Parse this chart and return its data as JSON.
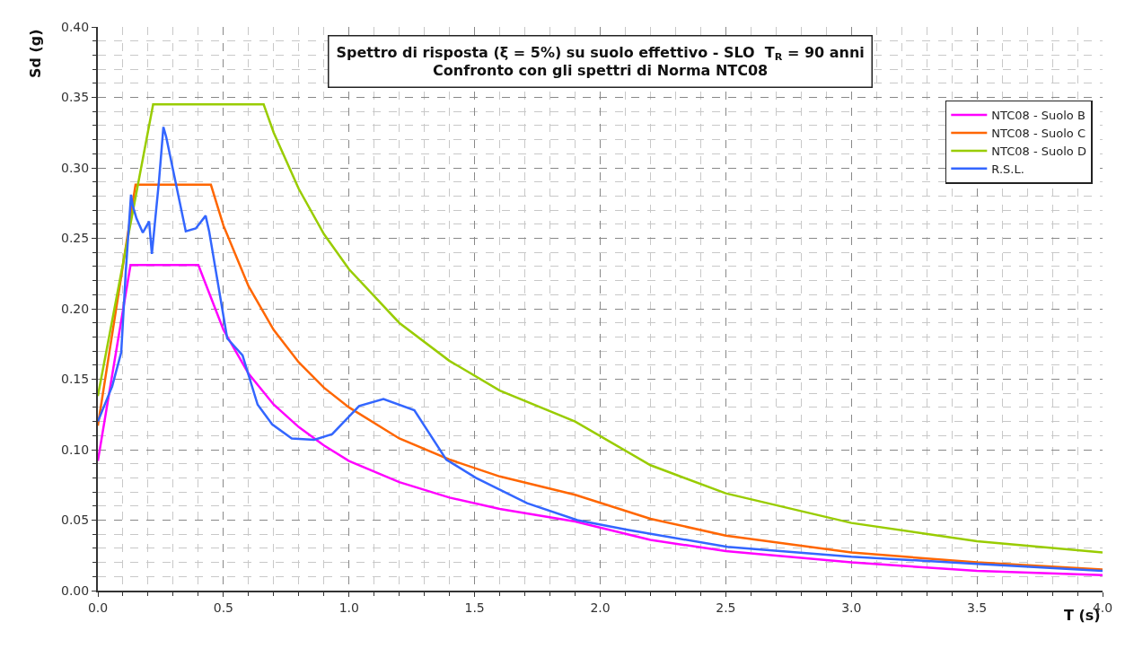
{
  "chart_data": {
    "type": "line",
    "title": "Spettro di risposta (ξ = 5%) su suolo effettivo - SLO  T$_{R}$ = 90 anni\nConfronto con gli spettri di Norma NTC08",
    "xlabel": "T (s)",
    "ylabel": "Sd (g)",
    "xlim": [
      0,
      4
    ],
    "ylim": [
      0,
      0.4
    ],
    "xticks": [
      {
        "value": 0,
        "label": "0.0"
      },
      {
        "value": 0.5,
        "label": "0.5"
      },
      {
        "value": 1,
        "label": "1.0"
      },
      {
        "value": 1.5,
        "label": "1.5"
      },
      {
        "value": 2,
        "label": "2.0"
      },
      {
        "value": 2.5,
        "label": "2.5"
      },
      {
        "value": 3,
        "label": "3.0"
      },
      {
        "value": 3.5,
        "label": "3.5"
      },
      {
        "value": 4,
        "label": "4.0"
      }
    ],
    "yticks": [
      {
        "value": 0,
        "label": "0.00"
      },
      {
        "value": 0.05,
        "label": "0.05"
      },
      {
        "value": 0.1,
        "label": "0.10"
      },
      {
        "value": 0.15,
        "label": "0.15"
      },
      {
        "value": 0.2,
        "label": "0.20"
      },
      {
        "value": 0.25,
        "label": "0.25"
      },
      {
        "value": 0.3,
        "label": "0.30"
      },
      {
        "value": 0.35,
        "label": "0.35"
      },
      {
        "value": 0.4,
        "label": "0.40"
      }
    ],
    "grid": true,
    "legend": "top right",
    "marker": "none",
    "line_style": "solid",
    "series": [
      {
        "name": "NTC08 - Suolo B",
        "color": "#ff00ff",
        "x": [
          0,
          0.13,
          0.4,
          0.5,
          0.6,
          0.7,
          0.8,
          0.9,
          1.0,
          1.2,
          1.4,
          1.6,
          1.9,
          2.2,
          2.5,
          3.0,
          3.5,
          4.0
        ],
        "values": [
          0.092,
          0.231,
          0.231,
          0.185,
          0.154,
          0.132,
          0.116,
          0.103,
          0.092,
          0.077,
          0.066,
          0.058,
          0.049,
          0.036,
          0.028,
          0.02,
          0.014,
          0.011
        ]
      },
      {
        "name": "NTC08 - Suolo C",
        "color": "#ff6600",
        "x": [
          0,
          0.15,
          0.45,
          0.5,
          0.6,
          0.7,
          0.8,
          0.9,
          1.0,
          1.2,
          1.4,
          1.6,
          1.9,
          2.2,
          2.5,
          3.0,
          3.5,
          4.0
        ],
        "values": [
          0.117,
          0.288,
          0.288,
          0.259,
          0.216,
          0.185,
          0.162,
          0.144,
          0.13,
          0.108,
          0.093,
          0.081,
          0.068,
          0.051,
          0.039,
          0.027,
          0.02,
          0.015
        ]
      },
      {
        "name": "NTC08 - Suolo D",
        "color": "#99cc00",
        "x": [
          0,
          0.22,
          0.66,
          0.7,
          0.8,
          0.9,
          1.0,
          1.2,
          1.4,
          1.6,
          1.9,
          2.2,
          2.5,
          3.0,
          3.5,
          4.0
        ],
        "values": [
          0.138,
          0.345,
          0.345,
          0.325,
          0.285,
          0.253,
          0.228,
          0.19,
          0.163,
          0.142,
          0.12,
          0.089,
          0.069,
          0.048,
          0.035,
          0.027
        ]
      },
      {
        "name": "R.S.L.",
        "color": "#3366ff",
        "x": [
          0,
          0.057,
          0.093,
          0.111,
          0.132,
          0.139,
          0.154,
          0.179,
          0.204,
          0.215,
          0.243,
          0.261,
          0.272,
          0.35,
          0.39,
          0.429,
          0.443,
          0.515,
          0.576,
          0.636,
          0.694,
          0.772,
          0.861,
          0.933,
          1.04,
          1.137,
          1.26,
          1.387,
          1.505,
          1.709,
          1.909,
          2.113,
          2.506,
          2.65,
          3.0,
          3.5,
          4.0
        ],
        "values": [
          0.12,
          0.145,
          0.169,
          0.226,
          0.281,
          0.273,
          0.264,
          0.254,
          0.262,
          0.239,
          0.29,
          0.329,
          0.322,
          0.255,
          0.257,
          0.266,
          0.255,
          0.179,
          0.167,
          0.132,
          0.118,
          0.108,
          0.107,
          0.111,
          0.131,
          0.136,
          0.128,
          0.093,
          0.08,
          0.062,
          0.05,
          0.043,
          0.031,
          0.029,
          0.024,
          0.019,
          0.014
        ]
      }
    ]
  }
}
